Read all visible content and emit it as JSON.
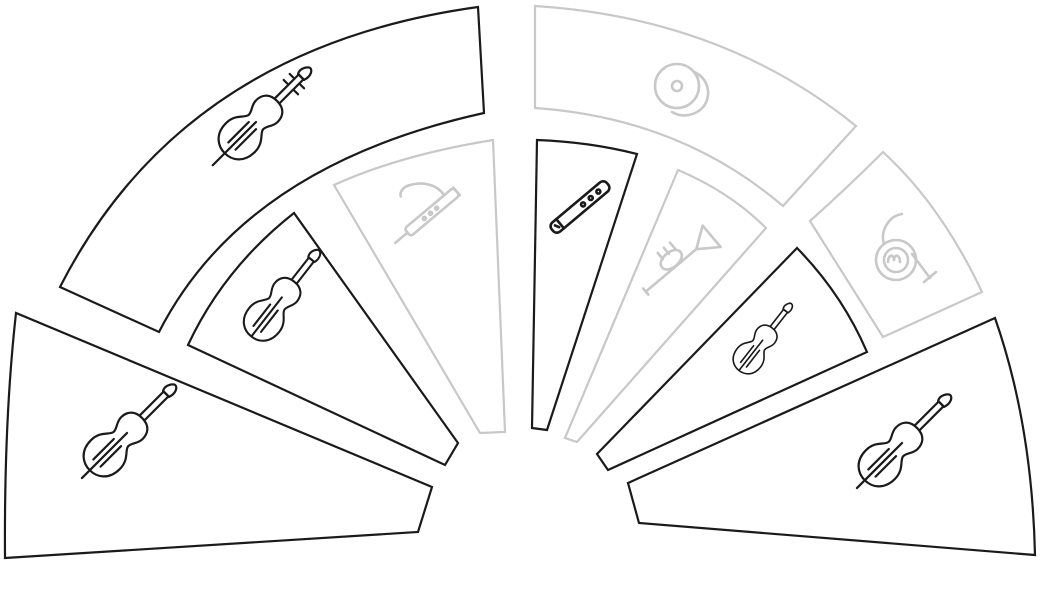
{
  "colors": {
    "active": "#1a1a1a",
    "inactive": "#c8c8c8",
    "background": "#ffffff"
  },
  "segments": [
    {
      "id": "violin-outer-left",
      "instrument": "violin",
      "icon": "violin-icon",
      "active": true
    },
    {
      "id": "cello",
      "instrument": "cello",
      "icon": "cello-icon",
      "active": true
    },
    {
      "id": "violin-middle-left",
      "instrument": "violin",
      "icon": "violin-icon",
      "active": true
    },
    {
      "id": "bassoon",
      "instrument": "bassoon",
      "icon": "bassoon-icon",
      "active": false
    },
    {
      "id": "flute",
      "instrument": "flute",
      "icon": "flute-icon",
      "active": true
    },
    {
      "id": "cymbals",
      "instrument": "cymbals",
      "icon": "cymbals-icon",
      "active": false
    },
    {
      "id": "trumpet",
      "instrument": "trumpet",
      "icon": "trumpet-icon",
      "active": false
    },
    {
      "id": "french-horn",
      "instrument": "french horn",
      "icon": "french-horn-icon",
      "active": false
    },
    {
      "id": "violin-middle-right",
      "instrument": "violin",
      "icon": "violin-icon",
      "active": true
    },
    {
      "id": "violin-outer-right",
      "instrument": "violin",
      "icon": "violin-icon",
      "active": true
    }
  ]
}
